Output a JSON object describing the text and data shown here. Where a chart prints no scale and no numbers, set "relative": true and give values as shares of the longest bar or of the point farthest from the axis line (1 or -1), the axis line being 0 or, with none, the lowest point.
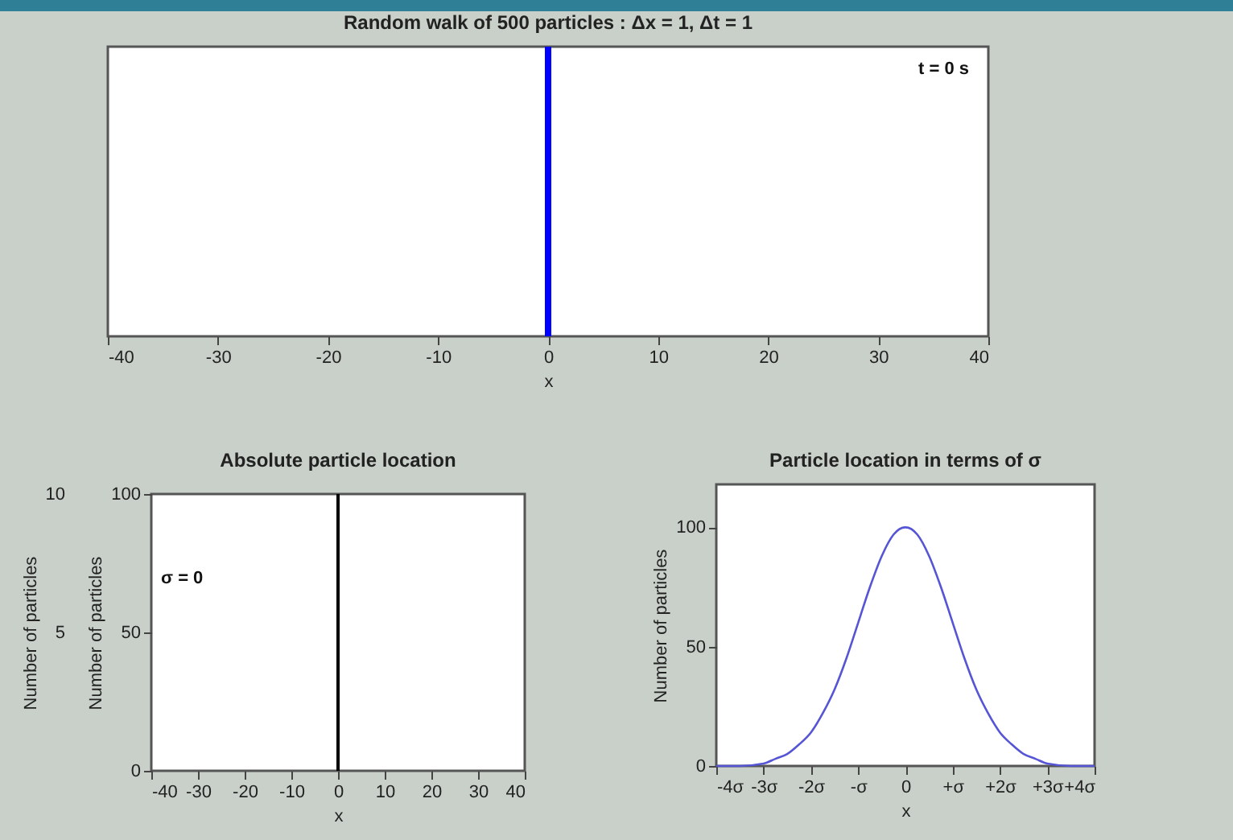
{
  "chart_data": [
    {
      "type": "bar",
      "title": "Random walk of 500 particles : Δx = 1, Δt = 1",
      "xlabel": "x",
      "x": [
        0
      ],
      "values": [
        1
      ],
      "relative": true,
      "color": "#0000ff",
      "xlim": [
        -40,
        40
      ],
      "xticks": [
        -40,
        -30,
        -20,
        -10,
        0,
        10,
        20,
        30,
        40
      ],
      "annotations": [
        "t = 0 s"
      ]
    },
    {
      "type": "bar",
      "title": "Absolute particle location",
      "xlabel": "x",
      "ylabel": "Number of particles",
      "y2label": "Number of particles",
      "x": [
        0
      ],
      "values": [
        100
      ],
      "color": "#000000",
      "xlim": [
        -40,
        40
      ],
      "xticks": [
        -40,
        -30,
        -20,
        -10,
        0,
        10,
        20,
        30,
        40
      ],
      "ylim": [
        0,
        100
      ],
      "yticks": [
        0,
        50,
        100
      ],
      "y2lim": [
        0,
        10
      ],
      "y2ticks": [
        5,
        10
      ],
      "annotations": [
        "σ = 0"
      ]
    },
    {
      "type": "line",
      "title": "Particle location in terms of σ",
      "xlabel": "x",
      "ylabel": "Number of particles",
      "color": "#5555d5",
      "x": [
        -4,
        -3.5,
        -3,
        -2.75,
        -2.5,
        -2.25,
        -2,
        -1.75,
        -1.5,
        -1.25,
        -1,
        -0.75,
        -0.5,
        -0.25,
        0,
        0.25,
        0.5,
        0.75,
        1,
        1.25,
        1.5,
        1.75,
        2,
        2.25,
        2.5,
        2.75,
        3,
        3.5,
        4
      ],
      "values": [
        0,
        0,
        1,
        3,
        5,
        9,
        14,
        22,
        32,
        45,
        60,
        75,
        88,
        97,
        100,
        97,
        88,
        75,
        60,
        45,
        32,
        22,
        14,
        9,
        5,
        3,
        1,
        0,
        0
      ],
      "xlim": [
        -4,
        4
      ],
      "xticks": [
        {
          "value": -4,
          "label": "-4σ"
        },
        {
          "value": -3,
          "label": "-3σ"
        },
        {
          "value": -2,
          "label": "-2σ"
        },
        {
          "value": -1,
          "label": "-σ"
        },
        0,
        {
          "value": 1,
          "label": "+σ"
        },
        {
          "value": 2,
          "label": "+2σ"
        },
        {
          "value": 3,
          "label": "+3σ"
        },
        {
          "value": 4,
          "label": "+4σ"
        }
      ],
      "ylim": [
        0,
        118
      ],
      "yticks": [
        0,
        50,
        100
      ]
    }
  ]
}
